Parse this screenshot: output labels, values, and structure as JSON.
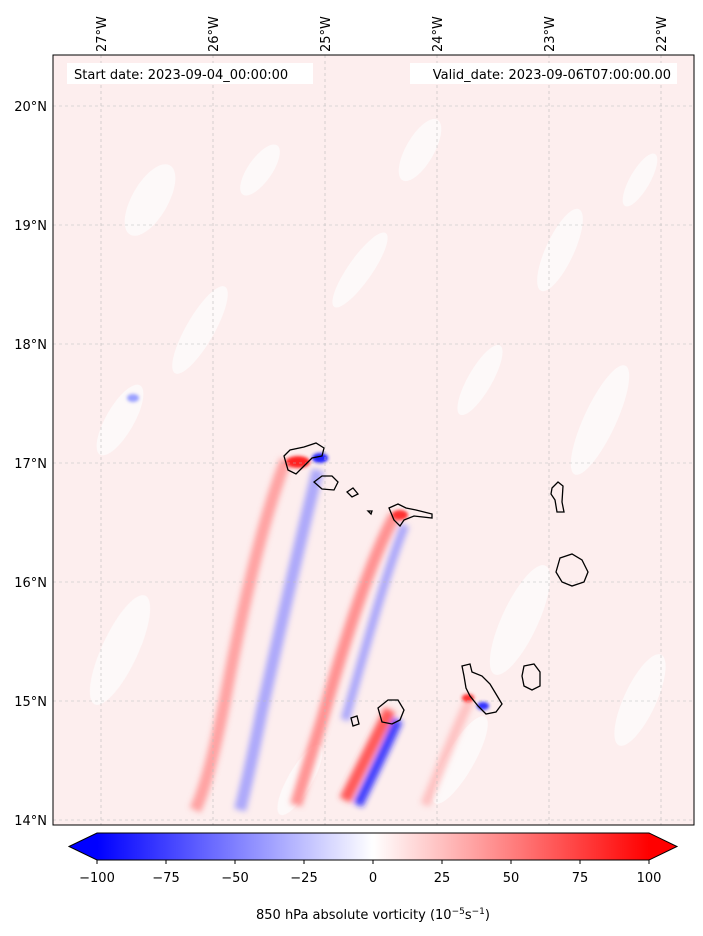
{
  "map": {
    "start_label": "Start date: 2023-09-04_00:00:00",
    "valid_label": "Valid_date: 2023-09-06T07:00:00.00",
    "lon_labels": [
      "27°W",
      "26°W",
      "25°W",
      "24°W",
      "23°W",
      "22°W"
    ],
    "lat_labels": [
      "20°N",
      "19°N",
      "18°N",
      "17°N",
      "16°N",
      "15°N",
      "14°N"
    ],
    "extent": {
      "lon_min": -27.4,
      "lon_max": -21.7,
      "lat_min": 13.95,
      "lat_max": 20.4
    },
    "gridlines": true,
    "background_color": "#fdeeee",
    "coastline_color": "#000000"
  },
  "colorbar": {
    "ticks": [
      "−100",
      "−75",
      "−50",
      "−25",
      "0",
      "25",
      "50",
      "75",
      "100"
    ],
    "min": -100,
    "max": 100,
    "extend": "both",
    "colormap": "bwr",
    "label_text": "850 hPa absolute vorticity (10",
    "label_exp1": "−5",
    "label_mid": "s",
    "label_exp2": "−1",
    "label_end": ")"
  }
}
